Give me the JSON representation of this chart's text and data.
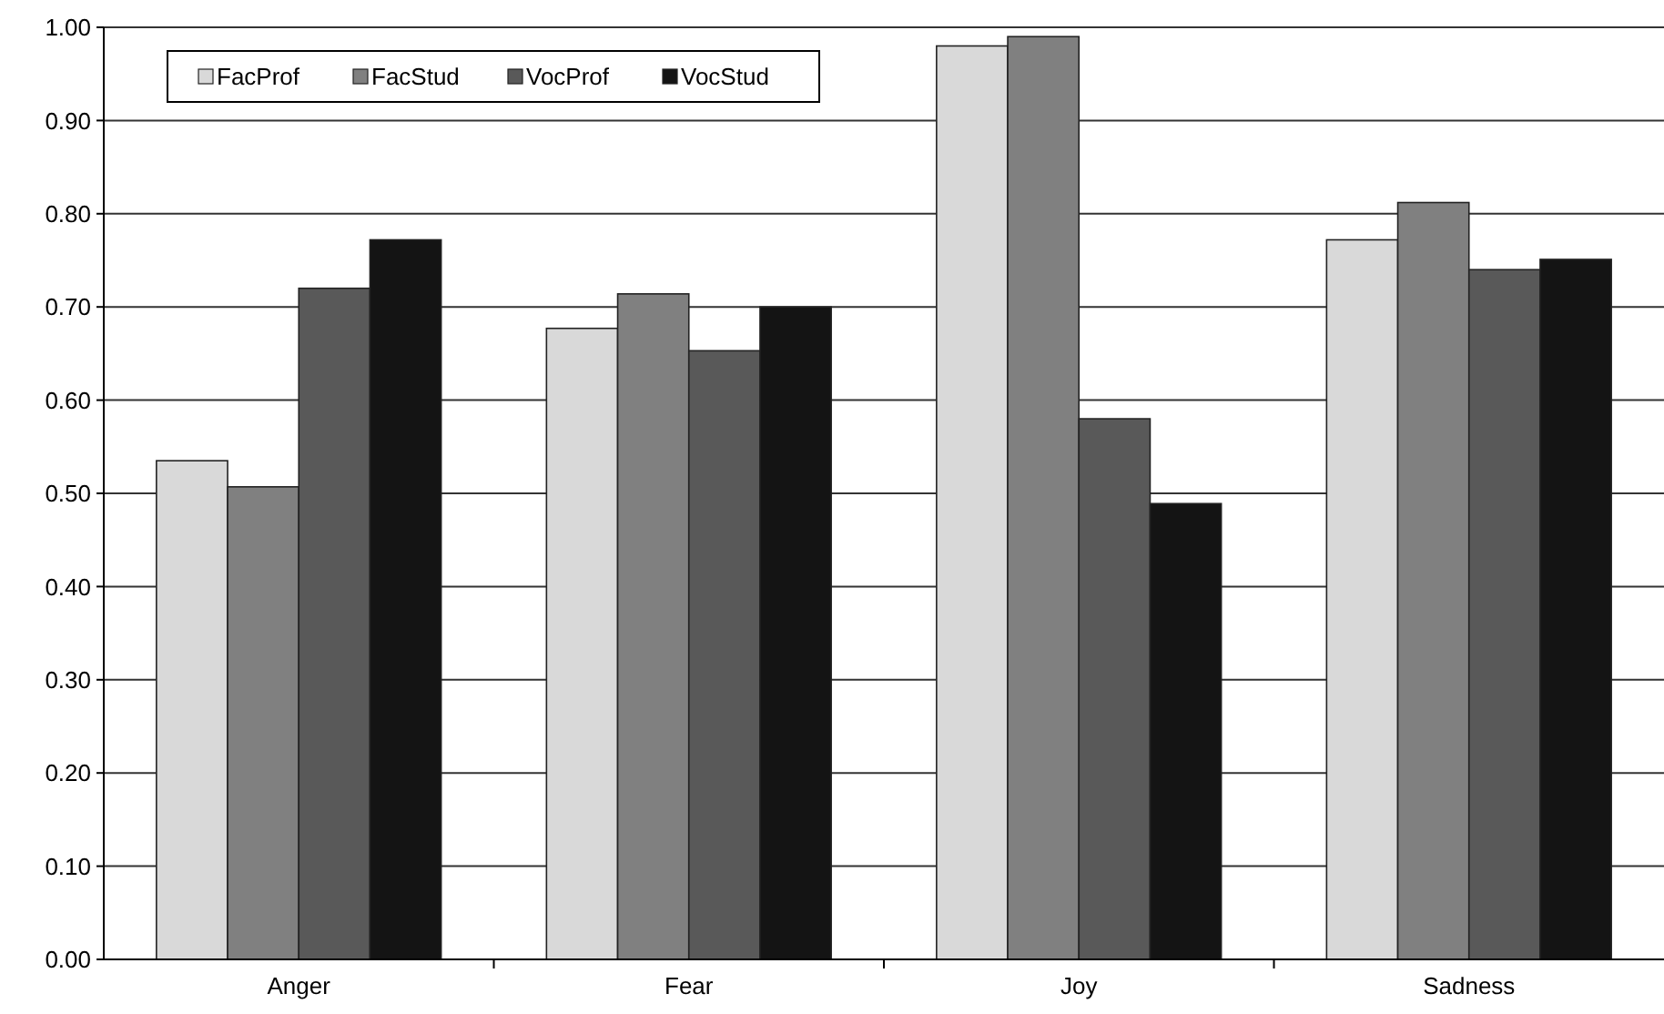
{
  "chart_data": {
    "type": "bar",
    "categories": [
      "Anger",
      "Fear",
      "Joy",
      "Sadness"
    ],
    "series": [
      {
        "name": "FacProf",
        "color": "#d9d9d9",
        "values": [
          0.535,
          0.677,
          0.98,
          0.772
        ]
      },
      {
        "name": "FacStud",
        "color": "#808080",
        "values": [
          0.507,
          0.714,
          0.99,
          0.812
        ]
      },
      {
        "name": "VocProf",
        "color": "#595959",
        "values": [
          0.72,
          0.653,
          0.58,
          0.74
        ]
      },
      {
        "name": "VocStud",
        "color": "#141414",
        "values": [
          0.772,
          0.7,
          0.489,
          0.751
        ]
      }
    ],
    "ylim": [
      0,
      1
    ],
    "yticks": [
      {
        "value": 0,
        "label": "0.00"
      },
      {
        "value": 0.1,
        "label": "0.10"
      },
      {
        "value": 0.2,
        "label": "0.20"
      },
      {
        "value": 0.3,
        "label": "0.30"
      },
      {
        "value": 0.4,
        "label": "0.40"
      },
      {
        "value": 0.5,
        "label": "0.50"
      },
      {
        "value": 0.6,
        "label": "0.60"
      },
      {
        "value": 0.7,
        "label": "0.70"
      },
      {
        "value": 0.8,
        "label": "0.80"
      },
      {
        "value": 0.9,
        "label": "0.90"
      },
      {
        "value": 1,
        "label": "1.00"
      }
    ],
    "grid": "y",
    "legend": "top left"
  }
}
